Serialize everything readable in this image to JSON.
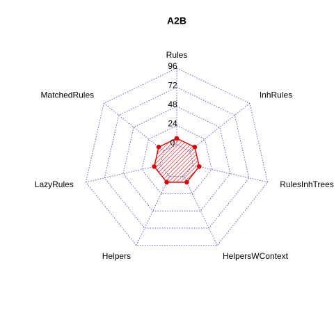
{
  "chart_data": {
    "type": "radar",
    "title": "A2B",
    "axes": [
      "Rules",
      "InhRules",
      "RulesInhTrees",
      "HelpersWContext",
      "Helpers",
      "LazyRules",
      "MatchedRules"
    ],
    "rlim": [
      0,
      96
    ],
    "ticks": [
      0,
      24,
      48,
      72,
      96
    ],
    "tick_labels": [
      "0",
      "24",
      "48",
      "72",
      "96"
    ],
    "series": [
      {
        "values": [
          8,
          8,
          8,
          8,
          8,
          8,
          8
        ]
      }
    ],
    "grid": true,
    "colors": {
      "grid": "#3b3bd1",
      "series": "#e00000",
      "hatch": "#d70000",
      "text": "#000000"
    }
  }
}
